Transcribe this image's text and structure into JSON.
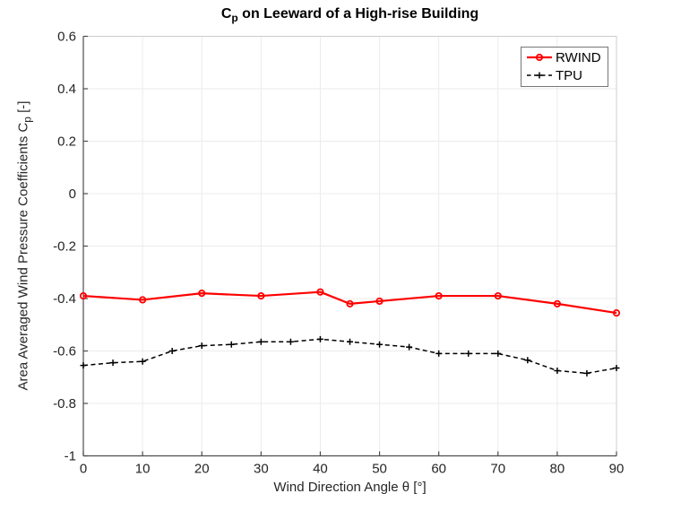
{
  "figure": {
    "title_parts": {
      "main": "C",
      "sub": "p",
      "rest": " on Leeward of a High-rise Building"
    },
    "xlabel": "Wind Direction Angle θ [°]",
    "ylabel_parts": {
      "pre": "Area Averaged Wind Pressure Coefficients C",
      "sub": "p",
      "post": " [-]"
    }
  },
  "legend": {
    "position": "top-right",
    "entries": [
      "RWIND",
      "TPU"
    ]
  },
  "colors": {
    "rwind": "#ff0000",
    "tpu": "#000000",
    "grid": "#ebebeb",
    "box": "#cccccc",
    "axis": "#4d4d4d",
    "tick_label": "#252525",
    "background": "#ffffff",
    "legend_border": "#757575"
  },
  "chart_data": {
    "type": "line",
    "title": "C_p on Leeward of a High-rise Building",
    "xlabel": "Wind Direction Angle θ [°]",
    "ylabel": "Area Averaged Wind Pressure Coefficients C_p [-]",
    "xlim": [
      0,
      90
    ],
    "ylim": [
      -1,
      0.6
    ],
    "x_ticks": [
      0,
      10,
      20,
      30,
      40,
      50,
      60,
      70,
      80,
      90
    ],
    "x_tick_labels": [
      "0",
      "10",
      "20",
      "30",
      "40",
      "50",
      "60",
      "70",
      "80",
      "90"
    ],
    "y_ticks": [
      0.6,
      0.4,
      0.2,
      0,
      -0.2,
      -0.4,
      -0.6,
      -0.8,
      -1
    ],
    "y_tick_labels": [
      "0.6",
      "0.4",
      "0.2",
      "0",
      "-0.2",
      "-0.4",
      "-0.6",
      "-0.8",
      "-1"
    ],
    "grid": true,
    "legend_position": "top-right",
    "series": [
      {
        "name": "RWIND",
        "color": "#ff0000",
        "line_style": "solid",
        "marker": "circle",
        "x": [
          0,
          10,
          20,
          30,
          40,
          45,
          50,
          60,
          70,
          80,
          90
        ],
        "y": [
          -0.39,
          -0.405,
          -0.38,
          -0.39,
          -0.375,
          -0.42,
          -0.41,
          -0.39,
          -0.39,
          -0.42,
          -0.455
        ]
      },
      {
        "name": "TPU",
        "color": "#000000",
        "line_style": "dashed",
        "marker": "plus",
        "x": [
          0,
          5,
          10,
          15,
          20,
          25,
          30,
          35,
          40,
          45,
          50,
          55,
          60,
          65,
          70,
          75,
          80,
          85,
          90
        ],
        "y": [
          -0.655,
          -0.645,
          -0.64,
          -0.6,
          -0.58,
          -0.575,
          -0.565,
          -0.565,
          -0.555,
          -0.565,
          -0.575,
          -0.585,
          -0.61,
          -0.61,
          -0.61,
          -0.635,
          -0.675,
          -0.685,
          -0.665
        ]
      }
    ]
  }
}
